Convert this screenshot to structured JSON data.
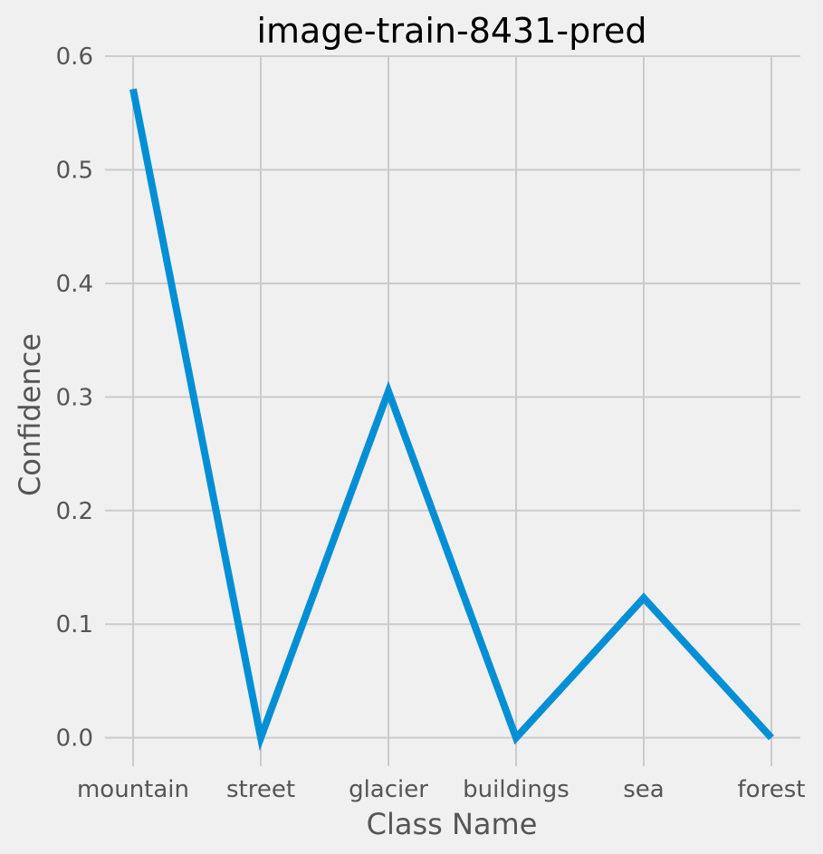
{
  "chart_data": {
    "type": "line",
    "title": "image-train-8431-pred",
    "xlabel": "Class Name",
    "ylabel": "Confidence",
    "categories": [
      "mountain",
      "street",
      "glacier",
      "buildings",
      "sea",
      "forest"
    ],
    "series": [
      {
        "values": [
          0.571,
          0.0,
          0.305,
          0.0,
          0.123,
          0.0
        ],
        "color": "#008fd5"
      }
    ],
    "ylim": [
      -0.025,
      0.6
    ],
    "yticks": [
      "0.0",
      "0.1",
      "0.2",
      "0.3",
      "0.4",
      "0.5",
      "0.6"
    ],
    "ytick_values": [
      0.0,
      0.1,
      0.2,
      0.3,
      0.4,
      0.5,
      0.6
    ],
    "grid": true,
    "background": "#f0f0f0"
  }
}
